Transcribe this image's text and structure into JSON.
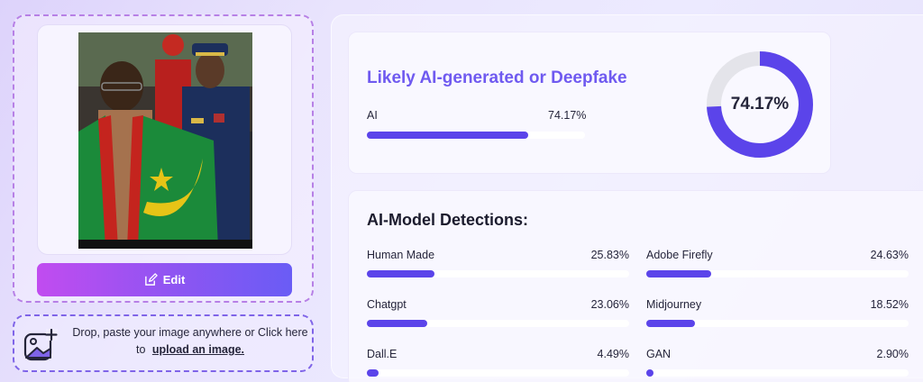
{
  "upload": {
    "edit_label": "Edit",
    "drop_text": "Drop, paste your image anywhere or Click here to",
    "drop_link": "upload an image."
  },
  "verdict": {
    "title": "Likely AI-generated or Deepfake",
    "label": "AI",
    "value_text": "74.17%",
    "value": 74.17,
    "donut_text": "74.17%"
  },
  "models": {
    "title": "AI-Model Detections:",
    "items": [
      {
        "name": "Human Made",
        "value_text": "25.83%",
        "value": 25.83
      },
      {
        "name": "Adobe Firefly",
        "value_text": "24.63%",
        "value": 24.63
      },
      {
        "name": "Chatgpt",
        "value_text": "23.06%",
        "value": 23.06
      },
      {
        "name": "Midjourney",
        "value_text": "18.52%",
        "value": 18.52
      },
      {
        "name": "Dall.E",
        "value_text": "4.49%",
        "value": 4.49
      },
      {
        "name": "GAN",
        "value_text": "2.90%",
        "value": 2.9
      }
    ]
  },
  "colors": {
    "accent": "#5b44ea",
    "title": "#6f5af0",
    "donut_track": "#e4e4ea",
    "edit_gradient_start": "#c14cf0",
    "edit_gradient_end": "#6a5cf5"
  },
  "icons": {
    "edit": "pencil-square-icon",
    "upload": "image-plus-icon"
  }
}
